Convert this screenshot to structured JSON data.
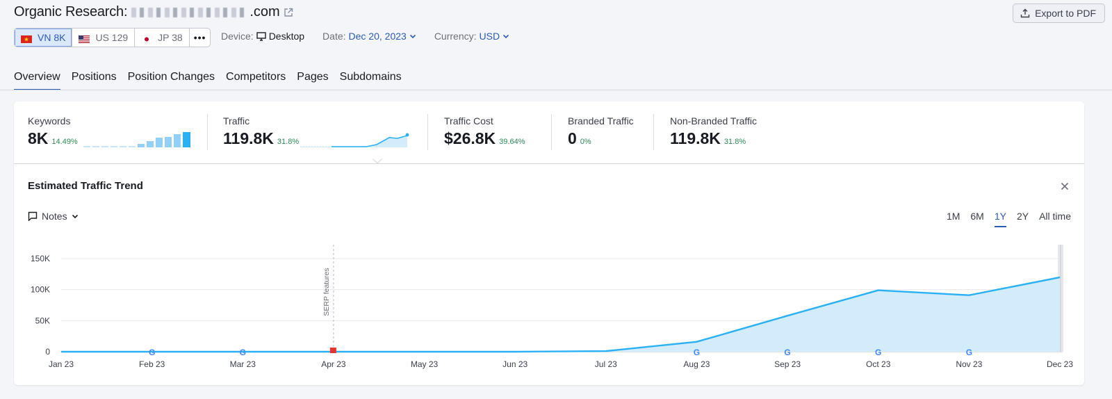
{
  "header": {
    "title_prefix": "Organic Research:",
    "domain_suffix": ".com",
    "export_label": "Export to PDF"
  },
  "databases": [
    {
      "label": "VN 8K",
      "flag": "vn",
      "active": true
    },
    {
      "label": "US 129",
      "flag": "us",
      "active": false
    },
    {
      "label": "JP 38",
      "flag": "jp",
      "active": false
    }
  ],
  "more_label": "•••",
  "filters": {
    "device_label": "Device:",
    "device_value": "Desktop",
    "date_label": "Date:",
    "date_value": "Dec 20, 2023",
    "currency_label": "Currency:",
    "currency_value": "USD"
  },
  "tabs": [
    "Overview",
    "Positions",
    "Position Changes",
    "Competitors",
    "Pages",
    "Subdomains"
  ],
  "active_tab": 0,
  "metrics": [
    {
      "label": "Keywords",
      "value": "8K",
      "change": "14.49%"
    },
    {
      "label": "Traffic",
      "value": "119.8K",
      "change": "31.8%"
    },
    {
      "label": "Traffic Cost",
      "value": "$26.8K",
      "change": "39.64%"
    },
    {
      "label": "Branded Traffic",
      "value": "0",
      "change": "0%"
    },
    {
      "label": "Non-Branded Traffic",
      "value": "119.8K",
      "change": "31.8%"
    }
  ],
  "trend": {
    "title": "Estimated Traffic Trend",
    "notes_label": "Notes",
    "ranges": [
      "1M",
      "6M",
      "1Y",
      "2Y",
      "All time"
    ],
    "active_range": "1Y"
  },
  "colors": {
    "accent": "#2b5bb3",
    "line": "#2ab0f5",
    "area": "#d3ecfb",
    "positive": "#2c8a55"
  },
  "chart_data": {
    "type": "area",
    "categories": [
      "Jan 23",
      "Feb 23",
      "Mar 23",
      "Apr 23",
      "May 23",
      "Jun 23",
      "Jul 23",
      "Aug 23",
      "Sep 23",
      "Oct 23",
      "Nov 23",
      "Dec 23"
    ],
    "values": [
      0,
      0,
      0,
      0,
      0,
      0,
      1000,
      16000,
      58000,
      99000,
      91000,
      119800
    ],
    "y_ticks": [
      "0",
      "50K",
      "100K",
      "150K"
    ],
    "ylim": [
      0,
      150000
    ],
    "grid": true,
    "annotations": [
      {
        "x": "Apr 23",
        "text": "SERP features"
      }
    ],
    "google_update_markers": [
      "Feb 23",
      "Mar 23",
      "Aug 23",
      "Sep 23",
      "Oct 23",
      "Nov 23"
    ]
  }
}
